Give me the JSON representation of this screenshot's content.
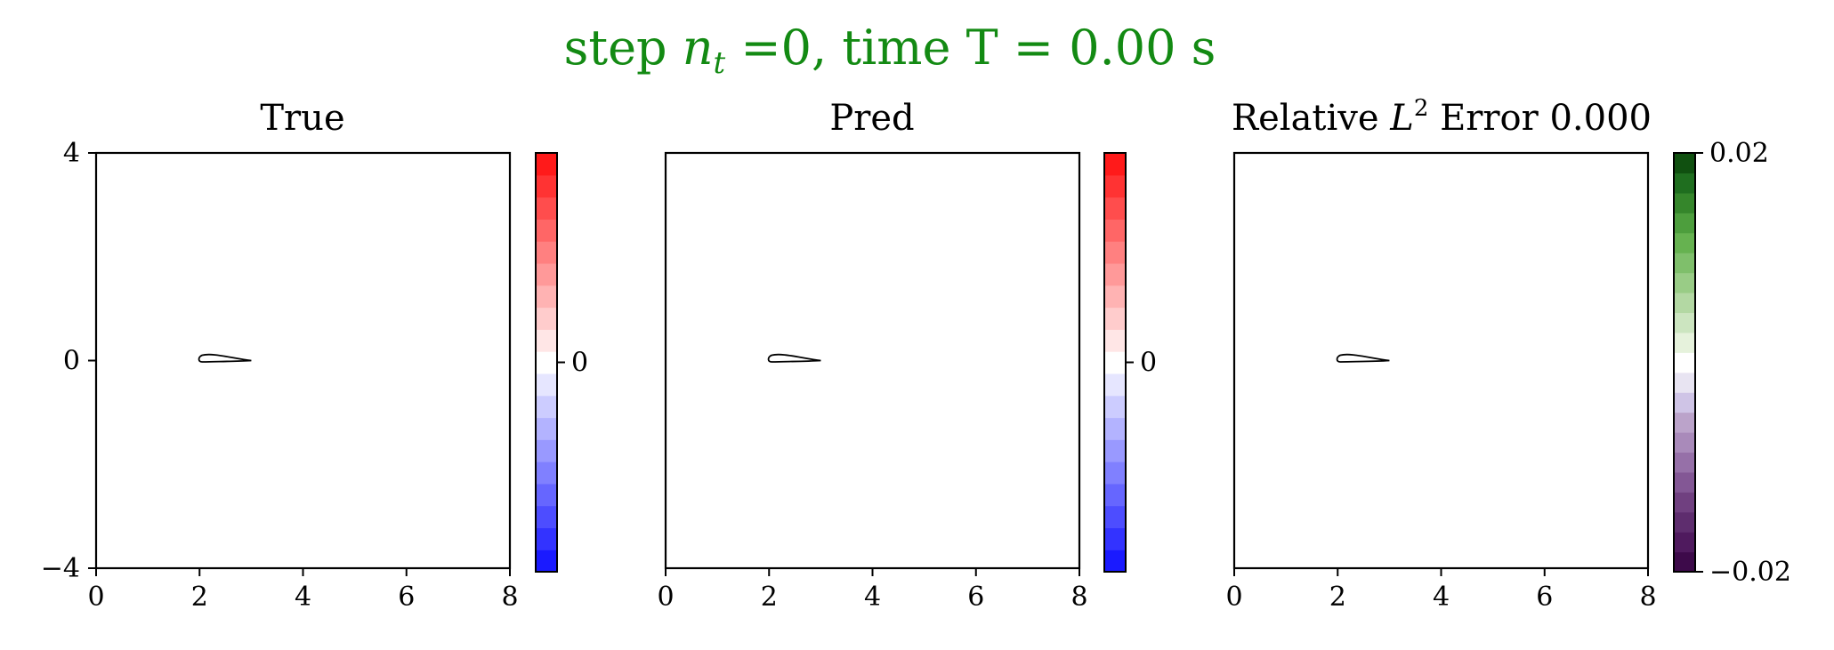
{
  "figure": {
    "suptitle": {
      "prefix": "step ",
      "var": "n",
      "sub": "t",
      "suffix": " =0, time T = 0.00 s"
    }
  },
  "chart_data": [
    {
      "type": "heatmap",
      "title": "True",
      "xlim": [
        0,
        8
      ],
      "ylim": [
        -4,
        4
      ],
      "xticks": [
        0,
        2,
        4,
        6,
        8
      ],
      "yticks": [
        -4,
        0,
        4
      ],
      "show_yticks": true,
      "airfoil": {
        "leading_edge_x": 2.0,
        "trailing_edge_x": 3.0,
        "y": 0
      },
      "colorbar": {
        "colors": [
          "#1a1aff",
          "#3333ff",
          "#4d4dff",
          "#6666ff",
          "#8080ff",
          "#9999ff",
          "#b3b3ff",
          "#ccccff",
          "#e6e6ff",
          "#ffffff",
          "#ffe6e6",
          "#ffcccc",
          "#ffb3b3",
          "#ff9999",
          "#ff8080",
          "#ff6666",
          "#ff4d4d",
          "#ff3333",
          "#ff1a1a"
        ],
        "ticks": [
          "0"
        ],
        "tick_values": [
          0
        ],
        "range": [
          -1,
          1
        ]
      }
    },
    {
      "type": "heatmap",
      "title": "Pred",
      "xlim": [
        0,
        8
      ],
      "ylim": [
        -4,
        4
      ],
      "xticks": [
        0,
        2,
        4,
        6,
        8
      ],
      "yticks": [
        -4,
        0,
        4
      ],
      "show_yticks": false,
      "airfoil": {
        "leading_edge_x": 2.0,
        "trailing_edge_x": 3.0,
        "y": 0
      },
      "colorbar": {
        "colors": [
          "#1a1aff",
          "#3333ff",
          "#4d4dff",
          "#6666ff",
          "#8080ff",
          "#9999ff",
          "#b3b3ff",
          "#ccccff",
          "#e6e6ff",
          "#ffffff",
          "#ffe6e6",
          "#ffcccc",
          "#ffb3b3",
          "#ff9999",
          "#ff8080",
          "#ff6666",
          "#ff4d4d",
          "#ff3333",
          "#ff1a1a"
        ],
        "ticks": [
          "0"
        ],
        "tick_values": [
          0
        ],
        "range": [
          -1,
          1
        ]
      }
    },
    {
      "type": "heatmap",
      "title": {
        "prefix": "Relative ",
        "var": "L",
        "sup": "2",
        "suffix": " Error 0.000"
      },
      "xlim": [
        0,
        8
      ],
      "ylim": [
        -4,
        4
      ],
      "xticks": [
        0,
        2,
        4,
        6,
        8
      ],
      "yticks": [
        -4,
        0,
        4
      ],
      "show_yticks": false,
      "airfoil": {
        "leading_edge_x": 2.0,
        "trailing_edge_x": 3.0,
        "y": 0
      },
      "colorbar": {
        "colors": [
          "#3d0a4a",
          "#4f1a5e",
          "#5e2d6e",
          "#704080",
          "#835795",
          "#9670a8",
          "#a98aba",
          "#bba3ca",
          "#cfc4e6",
          "#e8e4f2",
          "#ffffff",
          "#e6f2dc",
          "#cce5c0",
          "#b3d8a3",
          "#99cc86",
          "#7fbf6b",
          "#66b250",
          "#4d9e3d",
          "#35862b",
          "#1f6e1f",
          "#105010"
        ],
        "ticks": [
          "−0.02",
          "0.02"
        ],
        "tick_values": [
          -0.02,
          0.02
        ],
        "range": [
          -0.02,
          0.02
        ]
      }
    }
  ]
}
